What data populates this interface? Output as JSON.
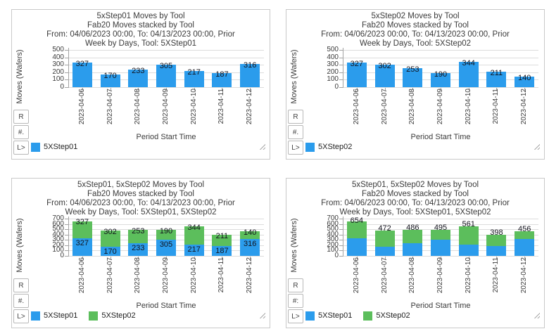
{
  "colors": {
    "series_blue": "#2B9CEC",
    "series_green": "#5CBE5C",
    "grid": "#dcdcdc",
    "axis": "#a3a3a3",
    "text": "#3b3b3b",
    "value_label": "#12121c",
    "panel_border": "#c9c9c9"
  },
  "chart_data": [
    {
      "type": "bar",
      "stacked": false,
      "title": "5xStep01 Moves by Tool",
      "title_lines": [
        "5xStep01 Moves by Tool",
        "Fab20 Moves stacked by Tool",
        "From: 04/06/2023 00:00, To: 04/13/2023 00:00, Prior",
        "Week by Days, Tool: 5XStep01"
      ],
      "xlabel": "Period Start Time",
      "ylabel": "Moves (Wafers)",
      "categories": [
        "2023-04-06",
        "2023-04-07",
        "2023-04-08",
        "2023-04-09",
        "2023-04-10",
        "2023-04-11",
        "2023-04-12"
      ],
      "series": [
        {
          "name": "5XStep01",
          "color": "#2B9CEC",
          "values": [
            327,
            170,
            233,
            305,
            217,
            187,
            316
          ]
        }
      ],
      "ylim": [
        0,
        500
      ],
      "ytick_step": 100,
      "grid": true,
      "label_mode": "segment",
      "legend": [
        "5XStep01"
      ],
      "legend_position": "bottom-left",
      "toolbar_buttons": [
        "R",
        "#.",
        "L>"
      ]
    },
    {
      "type": "bar",
      "stacked": false,
      "title": "5xStep02 Moves by Tool",
      "title_lines": [
        "5xStep02 Moves by Tool",
        "Fab20 Moves stacked by Tool",
        "From: 04/06/2023 00:00, To: 04/13/2023 00:00, Prior",
        "Week by Days, Tool: 5XStep02"
      ],
      "xlabel": "Period Start Time",
      "ylabel": "Moves (Wafers)",
      "categories": [
        "2023-04-06",
        "2023-04-07",
        "2023-04-08",
        "2023-04-09",
        "2023-04-10",
        "2023-04-11",
        "2023-04-12"
      ],
      "series": [
        {
          "name": "5XStep02",
          "color": "#2B9CEC",
          "values": [
            327,
            302,
            253,
            190,
            344,
            211,
            140
          ]
        }
      ],
      "ylim": [
        0,
        500
      ],
      "ytick_step": 100,
      "grid": true,
      "label_mode": "segment",
      "legend": [
        "5XStep02"
      ],
      "legend_position": "bottom-left",
      "toolbar_buttons": [
        "R",
        "#.",
        "L>"
      ]
    },
    {
      "type": "bar",
      "stacked": true,
      "title": "5xStep01, 5xStep02 Moves by Tool",
      "title_lines": [
        "5xStep01, 5xStep02 Moves by Tool",
        "Fab20 Moves stacked by Tool",
        "From: 04/06/2023 00:00, To: 04/13/2023 00:00, Prior",
        "Week by Days, Tool: 5XStep01, 5XStep02"
      ],
      "xlabel": "Period Start Time",
      "ylabel": "Moves (Wafers)",
      "categories": [
        "2023-04-06",
        "2023-04-07",
        "2023-04-08",
        "2023-04-09",
        "2023-04-10",
        "2023-04-11",
        "2023-04-12"
      ],
      "series": [
        {
          "name": "5XStep01",
          "color": "#2B9CEC",
          "values": [
            327,
            170,
            233,
            305,
            217,
            187,
            316
          ]
        },
        {
          "name": "5XStep02",
          "color": "#5CBE5C",
          "values": [
            327,
            302,
            253,
            190,
            344,
            211,
            140
          ]
        }
      ],
      "ylim": [
        0,
        700
      ],
      "ytick_step": 100,
      "grid": true,
      "label_mode": "segment",
      "legend": [
        "5XStep01",
        "5XStep02"
      ],
      "legend_position": "bottom-left",
      "toolbar_buttons": [
        "R",
        "#.",
        "L>"
      ]
    },
    {
      "type": "bar",
      "stacked": true,
      "title": "5xStep01, 5xStep02 Moves by Tool",
      "title_lines": [
        "5xStep01, 5xStep02 Moves by Tool",
        "Fab20 Moves stacked by Tool",
        "From: 04/06/2023 00:00, To: 04/13/2023 00:00, Prior",
        "Week by Days, Tool: 5XStep01, 5XStep02"
      ],
      "xlabel": "Period Start Time",
      "ylabel": "Moves (Wafers)",
      "categories": [
        "2023-04-06",
        "2023-04-07",
        "2023-04-08",
        "2023-04-09",
        "2023-04-10",
        "2023-04-11",
        "2023-04-12"
      ],
      "series": [
        {
          "name": "5XStep01",
          "color": "#2B9CEC",
          "values": [
            327,
            170,
            233,
            305,
            217,
            187,
            316
          ]
        },
        {
          "name": "5XStep02",
          "color": "#5CBE5C",
          "values": [
            327,
            302,
            253,
            190,
            344,
            211,
            140
          ]
        }
      ],
      "ylim": [
        0,
        700
      ],
      "ytick_step": 100,
      "grid": true,
      "label_mode": "total",
      "total_labels": [
        654,
        472,
        486,
        495,
        561,
        398,
        456
      ],
      "legend": [
        "5XStep01",
        "5XStep02"
      ],
      "legend_position": "bottom-left",
      "toolbar_buttons": [
        "R",
        "#:",
        "L>"
      ]
    }
  ]
}
